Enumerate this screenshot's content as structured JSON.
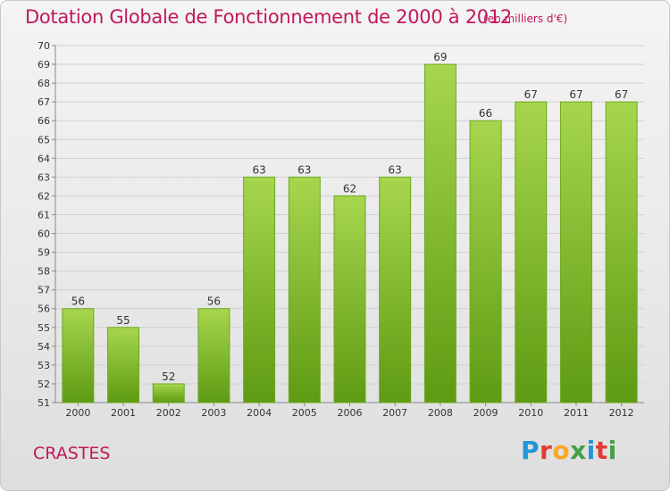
{
  "title": "Dotation Globale de Fonctionnement de 2000 à 2012",
  "unit": "(en milliers d'€)",
  "commune": "CRASTES",
  "logo": {
    "letters": [
      "P",
      "r",
      "o",
      "x",
      "i",
      "t",
      "i"
    ],
    "colors": [
      "#2196d6",
      "#e53935",
      "#f9a825",
      "#43a047",
      "#2196d6",
      "#e53935",
      "#43a047"
    ]
  },
  "colors": {
    "bar_top": "#a6d64e",
    "bar_bottom": "#5e9b12",
    "bar_stroke": "#6fa81f",
    "title": "#c2185b",
    "grid": "#d0d0d0"
  },
  "chart_data": {
    "type": "bar",
    "title": "Dotation Globale de Fonctionnement de 2000 à 2012",
    "subtitle": "(en milliers d'€)",
    "categories": [
      "2000",
      "2001",
      "2002",
      "2003",
      "2004",
      "2005",
      "2006",
      "2007",
      "2008",
      "2009",
      "2010",
      "2011",
      "2012"
    ],
    "values": [
      56,
      55,
      52,
      56,
      63,
      63,
      62,
      63,
      69,
      66,
      67,
      67,
      67
    ],
    "xlabel": "",
    "ylabel": "",
    "ylim": [
      51,
      70
    ],
    "yticks": [
      51,
      52,
      53,
      54,
      55,
      56,
      57,
      58,
      59,
      60,
      61,
      62,
      63,
      64,
      65,
      66,
      67,
      68,
      69,
      70
    ],
    "grid": true,
    "legend": "none"
  }
}
